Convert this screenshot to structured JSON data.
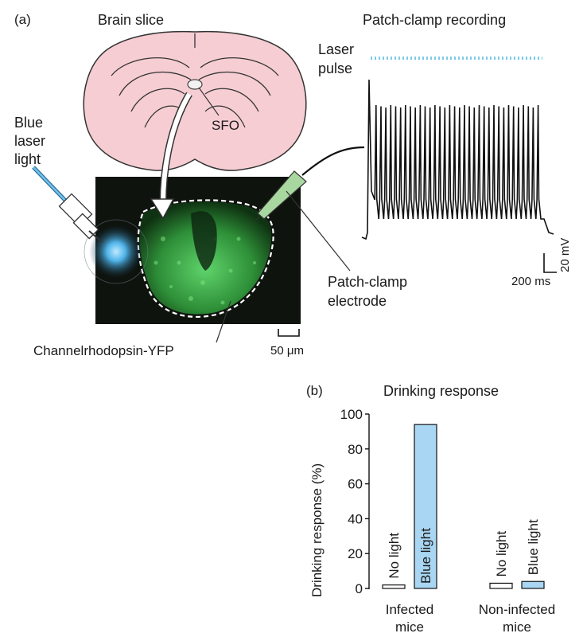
{
  "panel_a": {
    "label": "(a)",
    "brain_title": "Brain slice",
    "sfo_label": "SFO",
    "laser_label": [
      "Blue",
      "laser",
      "light"
    ],
    "channel_label": "Channelrhodopsin-YFP",
    "scale_label": "50 μm",
    "electrode_label": [
      "Patch-clamp",
      "electrode"
    ],
    "recording_title": "Patch-clamp recording",
    "pulse_label": [
      "Laser",
      "pulse"
    ],
    "scalebar_mv": "20 mV",
    "scalebar_ms": "200 ms",
    "colors": {
      "brain_fill": "#f6cdd3",
      "brain_stroke": "#333333",
      "laser_blue": "#4fb3e8",
      "pulse_dots": "#7ccbe6",
      "electrode_fill": "#a8d8a0",
      "micrograph_bg": "#0e130e",
      "micrograph_green": "#3cb84a"
    }
  },
  "panel_b": {
    "label": "(b)",
    "colors": {
      "blue_bar": "#a9d6f2",
      "no_light_bar": "#ffffff"
    }
  },
  "chart_data": {
    "type": "bar",
    "title": "Drinking response",
    "ylabel": "Drinking response (%)",
    "ylim": [
      0,
      100
    ],
    "yticks": [
      "0",
      "20",
      "40",
      "60",
      "80",
      "100"
    ],
    "groups": [
      "Infected\nmice",
      "Non-infected\nmice"
    ],
    "group_labels": [
      [
        "Infected",
        "mice"
      ],
      [
        "Non-infected",
        "mice"
      ]
    ],
    "bars": [
      {
        "group": 0,
        "label": "No light",
        "value": 2
      },
      {
        "group": 0,
        "label": "Blue light",
        "value": 94
      },
      {
        "group": 1,
        "label": "No light",
        "value": 3
      },
      {
        "group": 1,
        "label": "Blue light",
        "value": 4
      }
    ]
  }
}
